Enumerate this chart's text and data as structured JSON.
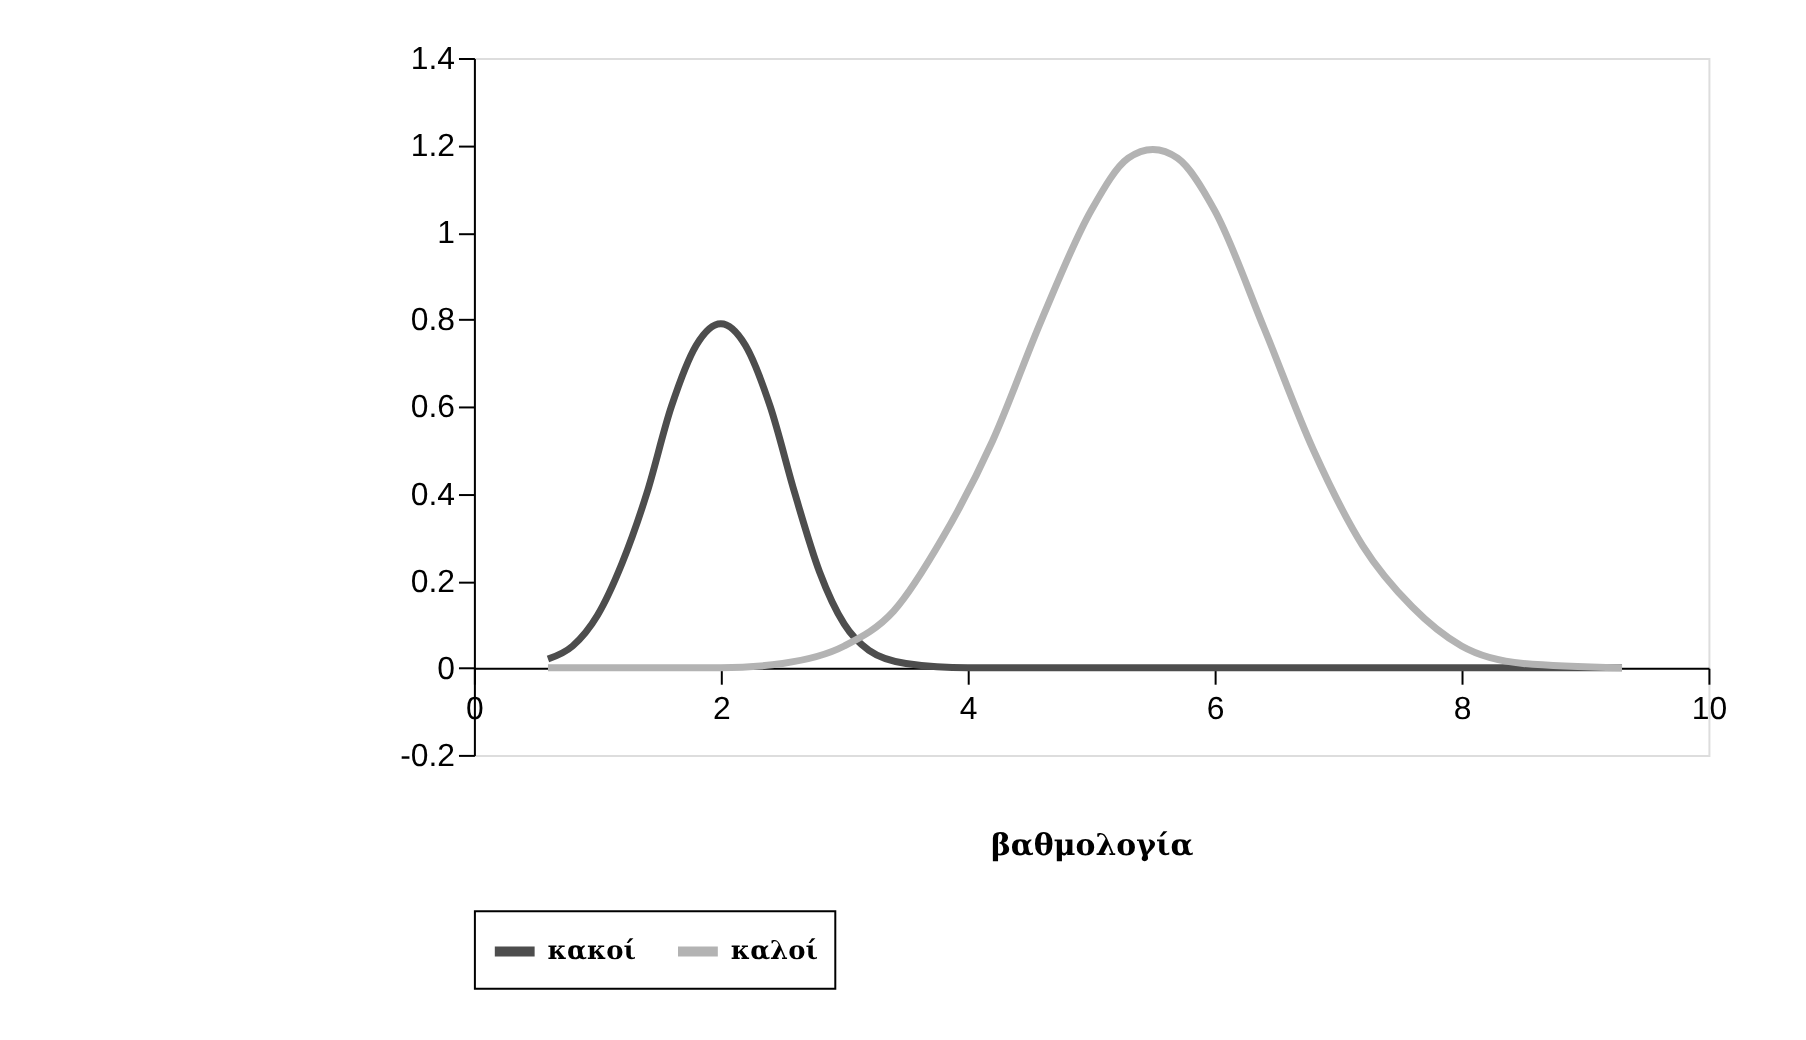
{
  "chart_data": {
    "type": "line",
    "xlabel": "βαθμολογία",
    "xlim": [
      0,
      10
    ],
    "xticks": [
      0,
      2,
      4,
      6,
      8,
      10
    ],
    "ylim": [
      -0.2,
      1.4
    ],
    "yticks": [
      -0.2,
      0,
      0.2,
      0.4,
      0.6,
      0.8,
      1,
      1.2,
      1.4
    ],
    "grid": false,
    "legend": "bottom",
    "marker": "none",
    "line_style": "solid",
    "series": [
      {
        "name": "κακοί",
        "color": "#4d4d4d",
        "x": [
          0.6,
          0.8,
          1.0,
          1.2,
          1.4,
          1.6,
          1.8,
          2.0,
          2.2,
          2.4,
          2.6,
          2.8,
          3.0,
          3.2,
          3.5,
          4.0,
          5.0,
          6.0,
          7.0,
          8.0,
          9.3
        ],
        "values": [
          0.02,
          0.05,
          0.12,
          0.24,
          0.4,
          0.6,
          0.74,
          0.79,
          0.74,
          0.6,
          0.4,
          0.22,
          0.1,
          0.04,
          0.01,
          0,
          0,
          0,
          0,
          0,
          0
        ]
      },
      {
        "name": "καλοί",
        "color": "#b3b3b3",
        "x": [
          0.6,
          1,
          2,
          2.5,
          3,
          3.4,
          3.8,
          4.2,
          4.6,
          5.0,
          5.3,
          5.5,
          5.7,
          6.0,
          6.4,
          6.8,
          7.2,
          7.6,
          8.0,
          8.5,
          9.3
        ],
        "values": [
          0,
          0,
          0,
          0.01,
          0.05,
          0.13,
          0.3,
          0.52,
          0.8,
          1.05,
          1.17,
          1.19,
          1.17,
          1.05,
          0.78,
          0.5,
          0.28,
          0.14,
          0.05,
          0.01,
          0
        ]
      }
    ]
  }
}
